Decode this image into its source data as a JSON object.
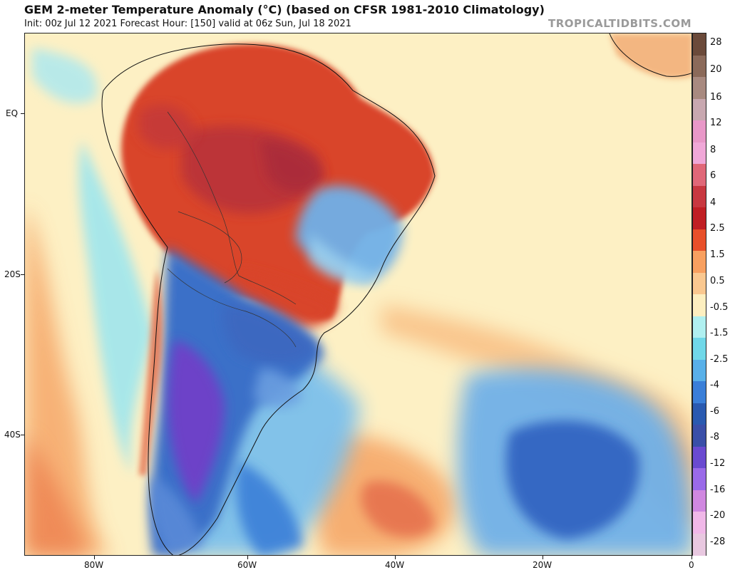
{
  "header": {
    "title": "GEM 2-meter Temperature Anomaly (°C) (based on CFSR 1981-2010 Climatology)",
    "subtitle": "Init: 00z Jul 12 2021   Forecast Hour: [150]   valid at 06z Sun, Jul 18 2021",
    "brand": "TROPICALTIDBITS.COM"
  },
  "axes": {
    "lat_labels": [
      "EQ",
      "20S",
      "40S"
    ],
    "lon_labels": [
      "80W",
      "60W",
      "40W",
      "20W",
      "0"
    ]
  },
  "colorbar": {
    "labels": [
      "28",
      "20",
      "16",
      "12",
      "8",
      "6",
      "4",
      "2.5",
      "1.5",
      "0.5",
      "-0.5",
      "-1.5",
      "-2.5",
      "-4",
      "-6",
      "-8",
      "-12",
      "-16",
      "-20",
      "-28"
    ],
    "colors": [
      "#6b4a3a",
      "#8b6a5a",
      "#a88a80",
      "#c8a8b0",
      "#e898c8",
      "#f0a8d8",
      "#e06878",
      "#c83840",
      "#c01f24",
      "#e8502a",
      "#f8a060",
      "#fac890",
      "#fdefc0",
      "#b0f0f0",
      "#70d8e8",
      "#58b0e8",
      "#3a7fd8",
      "#2a5ab0",
      "#3a4fa8",
      "#6a4ad0",
      "#9a6ae8",
      "#d088e0",
      "#f0b8e8",
      "#e8c8e0"
    ]
  },
  "palette": {
    "ocean_base": "#fdf0c4",
    "warm_mid": "#f6a769",
    "warm_strong": "#d9452a",
    "hot": "#b7303a",
    "cool_mid": "#6fb0e8",
    "cool_strong": "#2f60c0",
    "cold": "#7040c8"
  }
}
